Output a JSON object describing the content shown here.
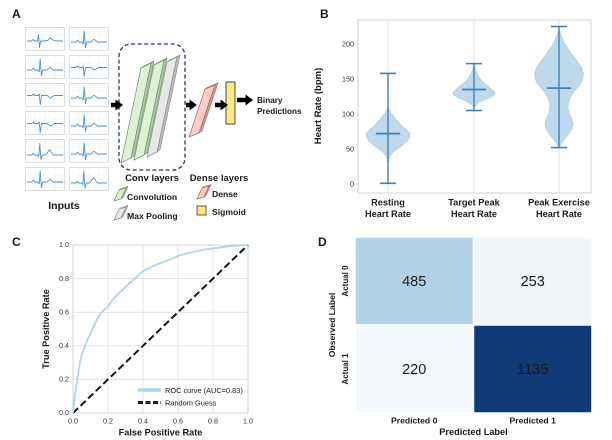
{
  "panels": {
    "A": {
      "label": "A",
      "inputs_caption": "Inputs",
      "conv_caption": "Conv layers",
      "dense_caption": "Dense layers",
      "output_line1": "Binary",
      "output_line2": "Predictions",
      "legend": [
        {
          "label": "Convolution",
          "color": "#dbf2d4"
        },
        {
          "label": "Max Pooling",
          "color": "#e8e8e8"
        },
        {
          "label": "Dense",
          "color": "#f9cdc7"
        },
        {
          "label": "Sigmoid",
          "color": "#fce97f"
        }
      ]
    },
    "B": {
      "label": "B"
    },
    "C": {
      "label": "C"
    },
    "D": {
      "label": "D"
    }
  },
  "chart_data": [
    {
      "panel": "B",
      "type": "violin",
      "ylabel": "Heart Rate (bpm)",
      "yticks": [
        "0",
        "50",
        "100",
        "150",
        "200"
      ],
      "ytick_values": [
        0,
        50,
        100,
        150,
        200
      ],
      "grid": "vertical-category-lines",
      "categories": [
        {
          "line1": "Resting",
          "line2": "Heart Rate"
        },
        {
          "line1": "Target Peak",
          "line2": "Heart Rate"
        },
        {
          "line1": "Peak Exercise",
          "line2": "Heart Rate"
        }
      ],
      "series": [
        {
          "name": "Resting Heart Rate",
          "min": 1,
          "max": 158,
          "median": 72,
          "profile": [
            [
              108,
              0.6
            ],
            [
              101,
              3
            ],
            [
              95,
              6.5
            ],
            [
              89,
              10
            ],
            [
              83,
              14
            ],
            [
              77,
              19
            ],
            [
              71,
              22
            ],
            [
              66,
              21.5
            ],
            [
              61,
              19
            ],
            [
              56,
              15
            ],
            [
              51,
              10
            ],
            [
              46,
              5.5
            ],
            [
              41,
              2.5
            ],
            [
              36,
              1
            ],
            [
              32,
              0.5
            ]
          ]
        },
        {
          "name": "Target Peak Heart Rate",
          "min": 105,
          "max": 172,
          "median": 135,
          "profile": [
            [
              168,
              0.5
            ],
            [
              161,
              2
            ],
            [
              154,
              4.5
            ],
            [
              147,
              8
            ],
            [
              142,
              12
            ],
            [
              137,
              16.5
            ],
            [
              132,
              20.5
            ],
            [
              128,
              21
            ],
            [
              124,
              17
            ],
            [
              120,
              10
            ],
            [
              116,
              5
            ],
            [
              113,
              2
            ],
            [
              110,
              0.6
            ]
          ]
        },
        {
          "name": "Peak Exercise Heart Rate",
          "min": 52,
          "max": 225,
          "median": 137,
          "profile": [
            [
              219,
              0.8
            ],
            [
              211,
              2.5
            ],
            [
              202,
              5
            ],
            [
              193,
              9
            ],
            [
              184,
              13.5
            ],
            [
              175,
              18.5
            ],
            [
              166,
              22.5
            ],
            [
              158,
              24.5
            ],
            [
              150,
              24
            ],
            [
              142,
              21
            ],
            [
              134,
              16
            ],
            [
              126,
              12
            ],
            [
              118,
              9.8
            ],
            [
              110,
              9
            ],
            [
              102,
              10
            ],
            [
              94,
              12.5
            ],
            [
              86,
              14.2
            ],
            [
              79,
              13
            ],
            [
              72,
              10
            ],
            [
              65,
              6
            ],
            [
              59,
              2.8
            ],
            [
              54,
              1
            ]
          ]
        }
      ],
      "colors": {
        "violin_fill": "#bed8ec",
        "violin_edge": "#a9cbe5",
        "whisker": "#4080ba"
      }
    },
    {
      "panel": "C",
      "type": "line",
      "xlabel": "False Positive Rate",
      "ylabel": "True Positive Rate",
      "xlim": [
        0,
        1
      ],
      "ylim": [
        0,
        1
      ],
      "xticks": [
        "0.0",
        "0.2",
        "0.4",
        "0.6",
        "0.8",
        "1.0"
      ],
      "yticks": [
        "0.0",
        "0.2",
        "0.4",
        "0.6",
        "0.8",
        "1.0"
      ],
      "grid": "on",
      "legend_position": "lower right",
      "auc": 0.83,
      "legend": [
        {
          "label": "ROC curve (AUC=0.83)",
          "color": "#a8d8ec",
          "dash": false
        },
        {
          "label": "Random Guess",
          "color": "#141414",
          "dash": true
        }
      ],
      "roc_points": [
        [
          0,
          0
        ],
        [
          0.005,
          0.05
        ],
        [
          0.01,
          0.1
        ],
        [
          0.02,
          0.17
        ],
        [
          0.03,
          0.24
        ],
        [
          0.04,
          0.3
        ],
        [
          0.05,
          0.345
        ],
        [
          0.06,
          0.375
        ],
        [
          0.08,
          0.43
        ],
        [
          0.1,
          0.475
        ],
        [
          0.12,
          0.52
        ],
        [
          0.14,
          0.56
        ],
        [
          0.16,
          0.595
        ],
        [
          0.18,
          0.615
        ],
        [
          0.2,
          0.635
        ],
        [
          0.22,
          0.665
        ],
        [
          0.25,
          0.7
        ],
        [
          0.28,
          0.73
        ],
        [
          0.3,
          0.75
        ],
        [
          0.33,
          0.78
        ],
        [
          0.36,
          0.805
        ],
        [
          0.4,
          0.845
        ],
        [
          0.44,
          0.865
        ],
        [
          0.48,
          0.885
        ],
        [
          0.52,
          0.9
        ],
        [
          0.56,
          0.915
        ],
        [
          0.6,
          0.935
        ],
        [
          0.65,
          0.95
        ],
        [
          0.7,
          0.962
        ],
        [
          0.75,
          0.972
        ],
        [
          0.8,
          0.98
        ],
        [
          0.85,
          0.987
        ],
        [
          0.9,
          0.993
        ],
        [
          0.95,
          0.997
        ],
        [
          1,
          1
        ]
      ],
      "diagonal": [
        [
          0,
          0
        ],
        [
          1,
          1
        ]
      ]
    },
    {
      "panel": "D",
      "type": "heatmap",
      "xlabel": "Predicted Label",
      "ylabel": "Observed Label",
      "col_labels": [
        "Predicted 0",
        "Predicted 1"
      ],
      "row_labels": [
        "Actual 0",
        "Actual 1"
      ],
      "values": [
        [
          "485",
          "253"
        ],
        [
          "220",
          "1135"
        ]
      ],
      "cell_colors": [
        [
          "#b3d2e8",
          "#f1f6fb"
        ],
        [
          "#f3f8fc",
          "#0e3a75"
        ]
      ],
      "text_colors": [
        [
          "#1a1a1a",
          "#1a1a1a"
        ],
        [
          "#1a1a1a",
          "#ffffff"
        ]
      ]
    }
  ]
}
